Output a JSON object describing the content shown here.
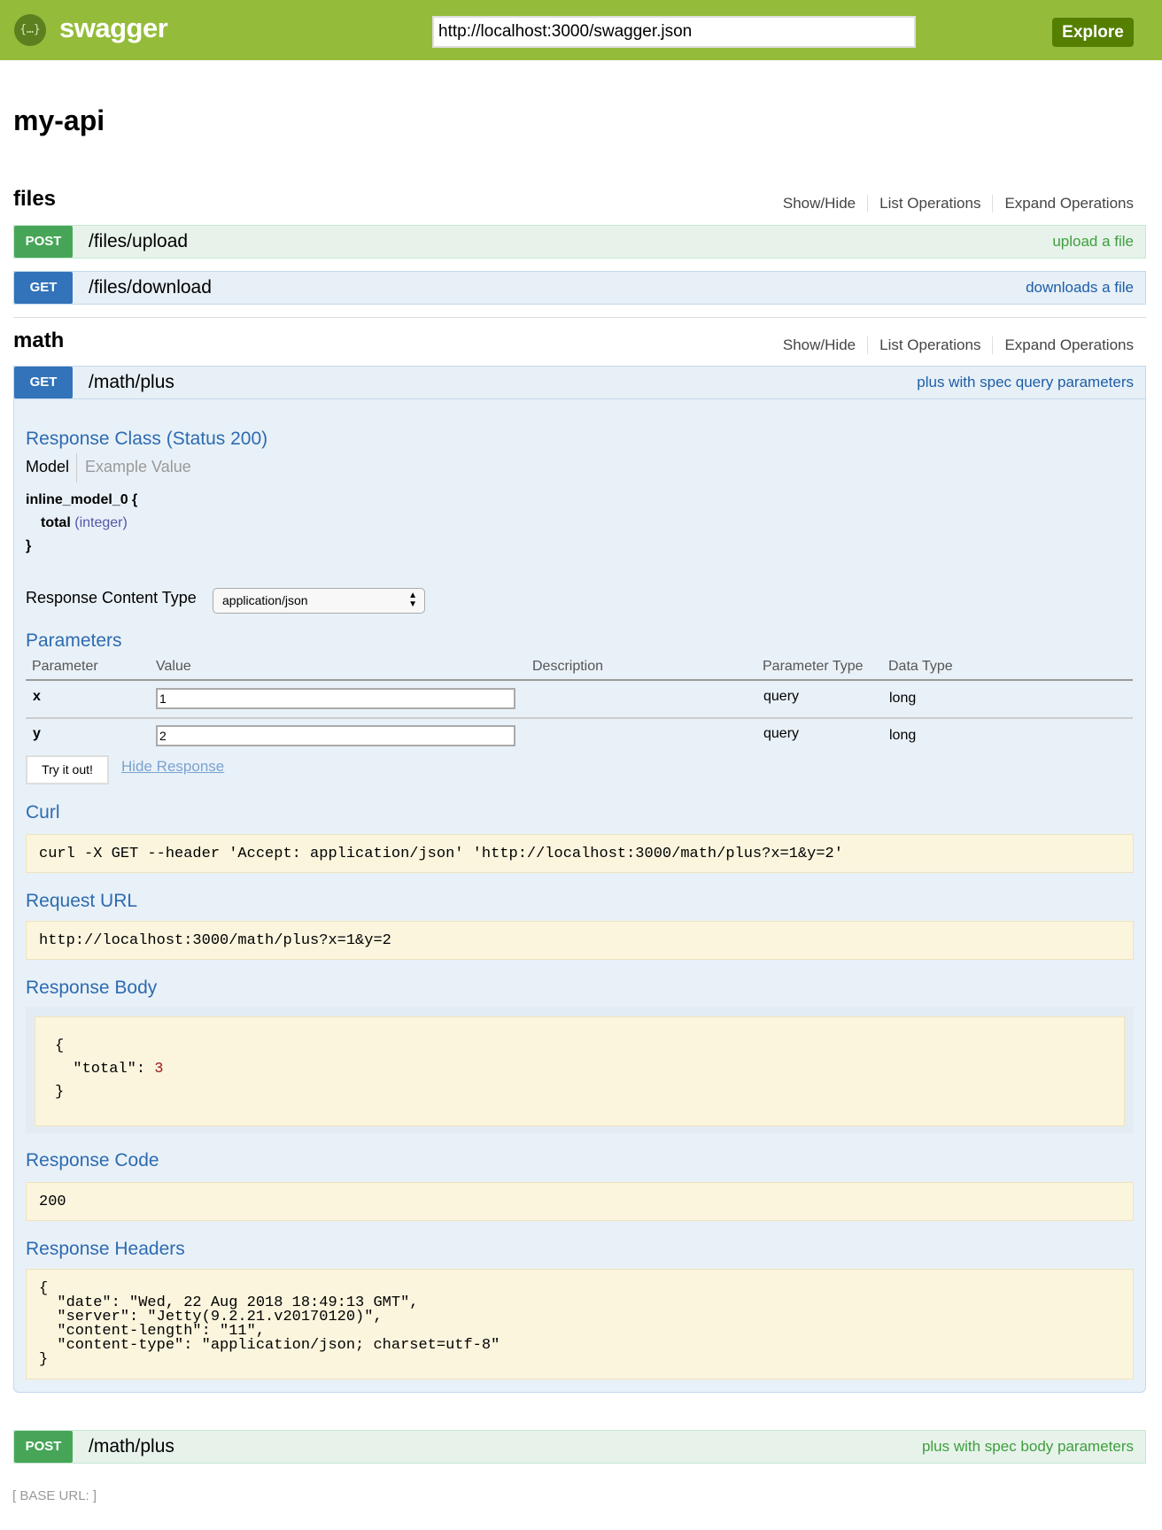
{
  "header": {
    "logo_text": "swagger",
    "logo_glyph": "{…}",
    "url_value": "http://localhost:3000/swagger.json",
    "explore_label": "Explore",
    "color": "#94bc3a"
  },
  "api_title": "my-api",
  "sections": [
    {
      "name": "files",
      "links": [
        "Show/Hide",
        "List Operations",
        "Expand Operations"
      ],
      "operations": [
        {
          "method": "POST",
          "path": "/files/upload",
          "summary": "upload a file"
        },
        {
          "method": "GET",
          "path": "/files/download",
          "summary": "downloads a file"
        }
      ]
    },
    {
      "name": "math",
      "links": [
        "Show/Hide",
        "List Operations",
        "Expand Operations"
      ],
      "operations": [
        {
          "method": "GET",
          "path": "/math/plus",
          "summary": "plus with spec query parameters"
        },
        {
          "method": "POST",
          "path": "/math/plus",
          "summary": "plus with spec body parameters"
        }
      ]
    }
  ],
  "expanded": {
    "response_class_title": "Response Class (Status 200)",
    "model_tab": "Model",
    "example_tab": "Example Value",
    "model_name": "inline_model_0 {",
    "model_prop": "total",
    "model_type": "integer",
    "model_close": "}",
    "content_type_label": "Response Content Type",
    "content_type_value": "application/json",
    "parameters_title": "Parameters",
    "param_headers": [
      "Parameter",
      "Value",
      "Description",
      "Parameter Type",
      "Data Type"
    ],
    "params": [
      {
        "name": "x",
        "value": "1",
        "description": "",
        "type": "query",
        "data_type": "long"
      },
      {
        "name": "y",
        "value": "2",
        "description": "",
        "type": "query",
        "data_type": "long"
      }
    ],
    "try_label": "Try it out!",
    "hide_label": "Hide Response",
    "curl_title": "Curl",
    "curl": "curl -X GET --header 'Accept: application/json' 'http://localhost:3000/math/plus?x=1&y=2'",
    "request_url_title": "Request URL",
    "request_url": "http://localhost:3000/math/plus?x=1&y=2",
    "response_body_title": "Response Body",
    "body_open": "{",
    "body_key": "\"total\": ",
    "body_value": "3",
    "body_close": "}",
    "response_code_title": "Response Code",
    "response_code": "200",
    "response_headers_title": "Response Headers",
    "response_headers": "{\n  \"date\": \"Wed, 22 Aug 2018 18:49:13 GMT\",\n  \"server\": \"Jetty(9.2.21.v20170120)\",\n  \"content-length\": \"11\",\n  \"content-type\": \"application/json; charset=utf-8\"\n}"
  },
  "footer": {
    "base_url": "BASE URL: "
  }
}
